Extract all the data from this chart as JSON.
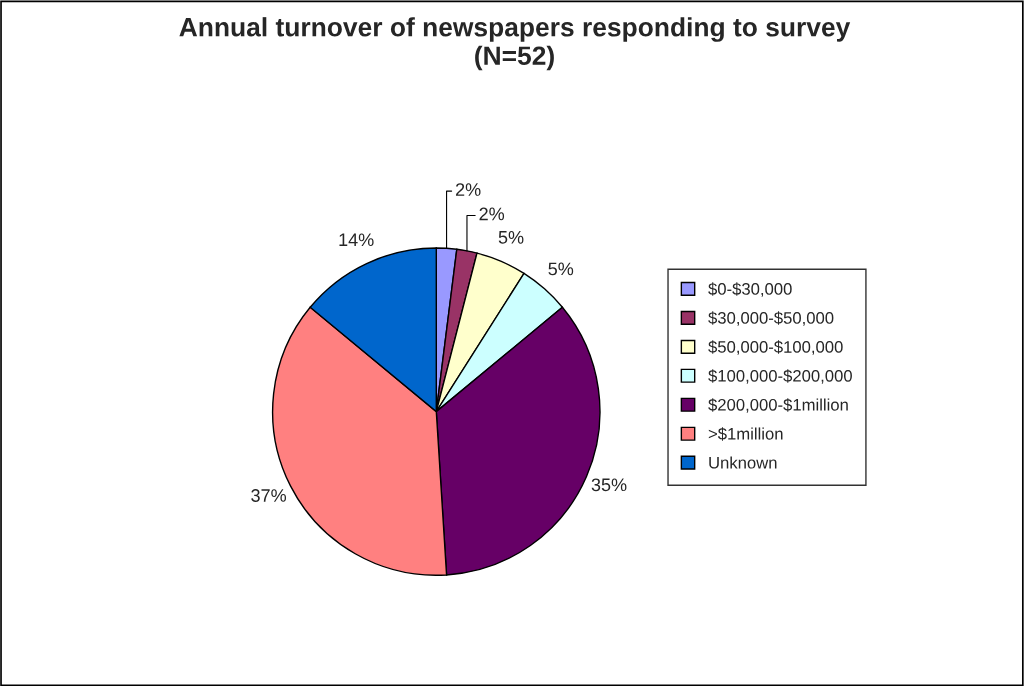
{
  "chart_data": {
    "type": "pie",
    "title": "Annual turnover of newspapers responding to survey\n(N=52)",
    "categories": [
      "$0-$30,000",
      "$30,000-$50,000",
      "$50,000-$100,000",
      "$100,000-$200,000",
      "$200,000-$1million",
      ">$1million",
      "Unknown"
    ],
    "values": [
      2,
      2,
      5,
      5,
      35,
      37,
      14
    ],
    "colors": [
      "#9999ff",
      "#993366",
      "#ffffcc",
      "#ccffff",
      "#660066",
      "#ff8080",
      "#0066cc"
    ],
    "value_labels": [
      "2%",
      "2%",
      "5%",
      "5%",
      "35%",
      "37%",
      "14%"
    ],
    "legend": "right"
  }
}
